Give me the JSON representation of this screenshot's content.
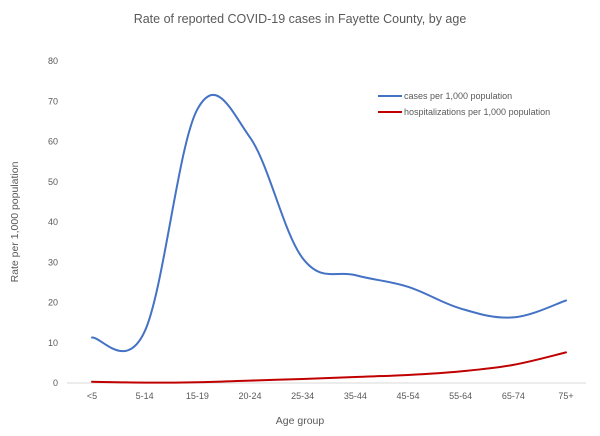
{
  "chart_data": {
    "type": "line",
    "title": "Rate of reported COVID-19 cases in Fayette County, by age",
    "xlabel": "Age group",
    "ylabel": "Rate per 1,000 population",
    "categories": [
      "<5",
      "5-14",
      "15-19",
      "20-24",
      "25-34",
      "35-44",
      "45-54",
      "55-64",
      "65-74",
      "75+"
    ],
    "ylim": [
      0,
      80
    ],
    "yticks": [
      "0",
      "10",
      "20",
      "30",
      "40",
      "50",
      "60",
      "70",
      "80"
    ],
    "grid": false,
    "legend_position": "top-right",
    "series": [
      {
        "name": "cases per 1,000 population",
        "color": "#4472C4",
        "values": [
          11.3,
          12.8,
          68.0,
          61.0,
          31.0,
          26.8,
          23.9,
          18.5,
          16.3,
          20.5
        ]
      },
      {
        "name": "hospitalizations per 1,000 population",
        "color": "#C00000",
        "values": [
          0.3,
          0.1,
          0.2,
          0.6,
          1.0,
          1.5,
          2.0,
          2.9,
          4.5,
          7.6
        ]
      }
    ]
  }
}
